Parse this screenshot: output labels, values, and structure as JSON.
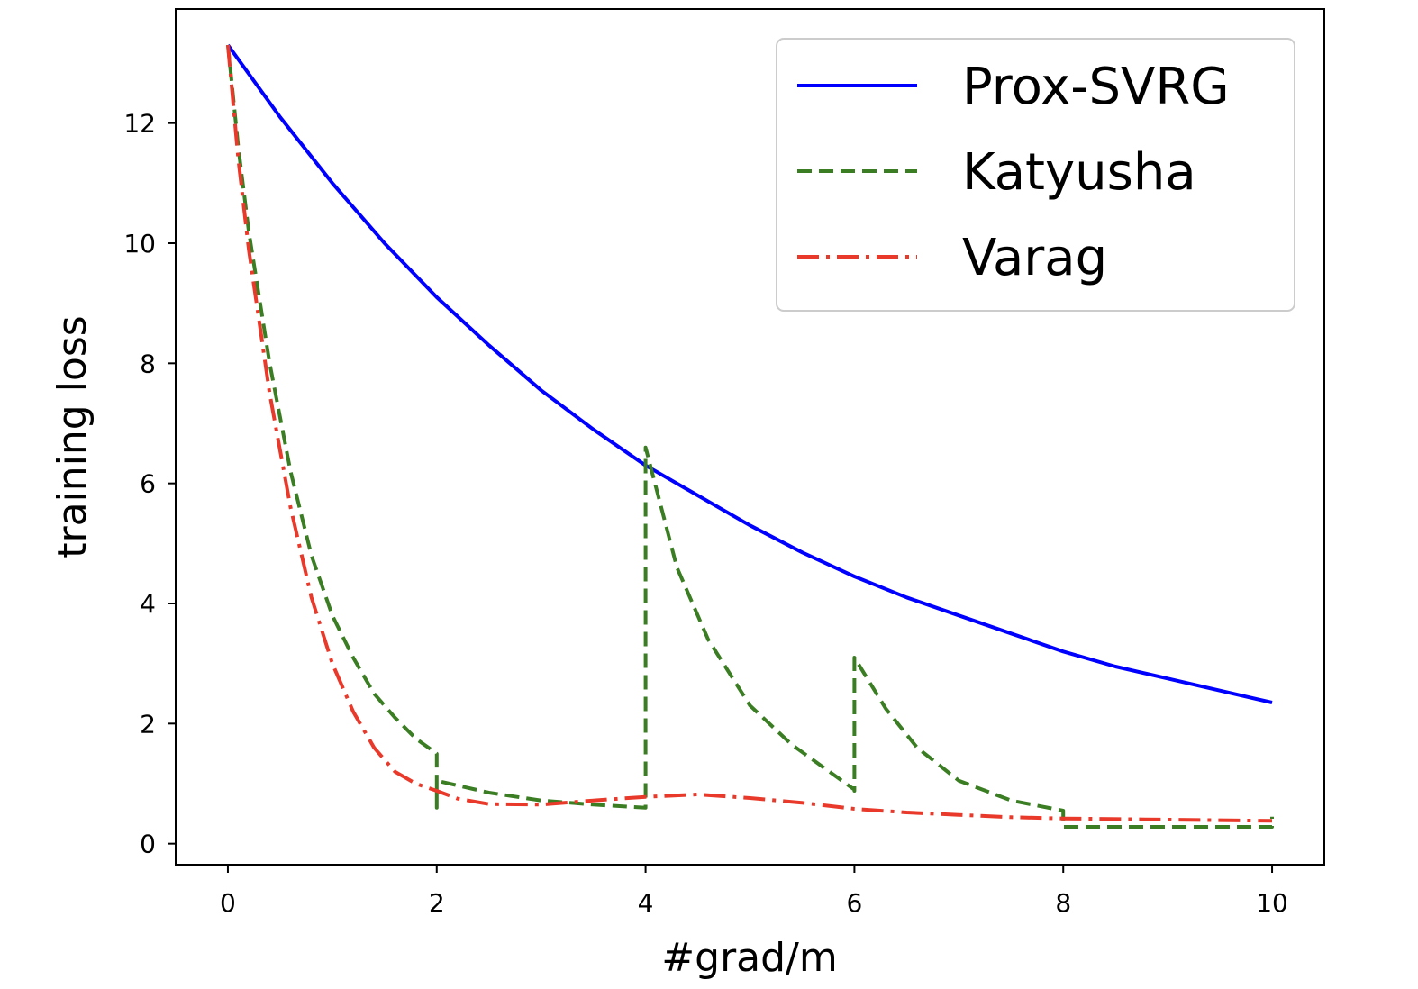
{
  "chart_data": {
    "type": "line",
    "title": "",
    "xlabel": "#grad/m",
    "ylabel": "training loss",
    "xlim": [
      -0.5,
      10.5
    ],
    "ylim": [
      -0.35,
      13.9
    ],
    "xticks": [
      0,
      2,
      4,
      6,
      8,
      10
    ],
    "yticks": [
      0,
      2,
      4,
      6,
      8,
      10,
      12
    ],
    "grid": false,
    "legend_position": "top-right",
    "series": [
      {
        "name": "Prox-SVRG",
        "color": "#0000ff",
        "style": "solid",
        "x": [
          0,
          0.5,
          1,
          1.5,
          2,
          2.5,
          3,
          3.5,
          4,
          4.5,
          5,
          5.5,
          6,
          6.5,
          7,
          7.5,
          8,
          8.5,
          9,
          9.5,
          10
        ],
        "y": [
          13.3,
          12.1,
          11.0,
          10.0,
          9.1,
          8.3,
          7.55,
          6.9,
          6.3,
          5.8,
          5.3,
          4.85,
          4.45,
          4.1,
          3.8,
          3.5,
          3.2,
          2.95,
          2.75,
          2.55,
          2.35
        ]
      },
      {
        "name": "Katyusha",
        "color": "#3a7d22",
        "style": "dashed",
        "x": [
          0,
          0.1,
          0.2,
          0.4,
          0.6,
          0.8,
          1.0,
          1.2,
          1.4,
          1.6,
          1.8,
          2.0,
          2.0,
          2.0,
          2.5,
          3.0,
          3.5,
          4.0,
          4.0,
          4.0,
          4.3,
          4.6,
          5.0,
          5.4,
          5.8,
          6.0,
          6.0,
          6.0,
          6.3,
          6.6,
          7.0,
          7.5,
          8.0,
          8.0,
          8.0,
          9.0,
          10.0,
          10.0
        ],
        "y": [
          13.3,
          11.6,
          10.2,
          8.0,
          6.2,
          4.8,
          3.8,
          3.1,
          2.5,
          2.1,
          1.75,
          1.5,
          0.6,
          1.05,
          0.85,
          0.72,
          0.65,
          0.6,
          0.6,
          6.6,
          4.6,
          3.4,
          2.3,
          1.65,
          1.15,
          0.9,
          0.88,
          3.1,
          2.25,
          1.6,
          1.05,
          0.72,
          0.55,
          0.55,
          0.28,
          0.28,
          0.28,
          0.45
        ]
      },
      {
        "name": "Varag",
        "color": "#e8392a",
        "style": "dashdot",
        "x": [
          0,
          0.1,
          0.2,
          0.4,
          0.6,
          0.8,
          1.0,
          1.2,
          1.4,
          1.6,
          1.8,
          2.0,
          2.2,
          2.5,
          3.0,
          3.5,
          4.0,
          4.5,
          5.0,
          5.5,
          6.0,
          6.5,
          7.0,
          7.5,
          8.0,
          9.0,
          10.0
        ],
        "y": [
          13.3,
          11.4,
          9.9,
          7.5,
          5.6,
          4.1,
          3.0,
          2.2,
          1.6,
          1.2,
          1.0,
          0.88,
          0.75,
          0.66,
          0.65,
          0.72,
          0.78,
          0.82,
          0.76,
          0.68,
          0.58,
          0.52,
          0.48,
          0.44,
          0.42,
          0.4,
          0.38
        ]
      }
    ]
  }
}
